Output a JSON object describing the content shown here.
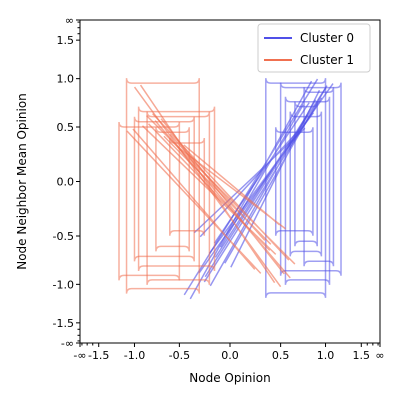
{
  "chart_data": {
    "type": "line",
    "xlabel": "Node Opinion",
    "ylabel": "Node Neighbor Mean Opinion",
    "scale": "arctanh-like (tick values map through tanh)",
    "x_ticks": [
      {
        "v": "-inf",
        "label": "-∞"
      },
      {
        "v": -1.5,
        "label": "-1.5"
      },
      {
        "v": -1.0,
        "label": "-1.0"
      },
      {
        "v": -0.5,
        "label": "-0.5"
      },
      {
        "v": 0.0,
        "label": "0.0"
      },
      {
        "v": 0.5,
        "label": "0.5"
      },
      {
        "v": 1.0,
        "label": "1.0"
      },
      {
        "v": 1.5,
        "label": "1.5"
      },
      {
        "v": "inf",
        "label": "∞"
      }
    ],
    "y_ticks": [
      {
        "v": "-inf",
        "label": "-∞"
      },
      {
        "v": -1.5,
        "label": "-1.5"
      },
      {
        "v": -1.0,
        "label": "-1.0"
      },
      {
        "v": -0.5,
        "label": "-0.5"
      },
      {
        "v": 0.0,
        "label": "0.0"
      },
      {
        "v": 0.5,
        "label": "0.5"
      },
      {
        "v": 1.0,
        "label": "1.0"
      },
      {
        "v": 1.5,
        "label": "1.5"
      },
      {
        "v": "inf",
        "label": "∞"
      }
    ],
    "legend_position": "top-right",
    "series": [
      {
        "name": "Cluster 0",
        "color": "#5050e8",
        "loops": [
          {
            "x": [
              0.35,
              1.0
            ],
            "y": [
              -1.1,
              0.95
            ]
          },
          {
            "x": [
              0.5,
              1.2
            ],
            "y": [
              -0.85,
              0.9
            ]
          },
          {
            "x": [
              0.55,
              1.05
            ],
            "y": [
              -0.95,
              0.75
            ]
          },
          {
            "x": [
              0.6,
              0.95
            ],
            "y": [
              -0.65,
              0.6
            ]
          },
          {
            "x": [
              0.75,
              1.1
            ],
            "y": [
              -0.75,
              0.85
            ]
          },
          {
            "x": [
              0.45,
              0.85
            ],
            "y": [
              -0.45,
              0.45
            ]
          },
          {
            "x": [
              0.65,
              0.9
            ],
            "y": [
              -0.55,
              0.7
            ]
          }
        ]
      },
      {
        "name": "Cluster 1",
        "color": "#f07050",
        "loops": [
          {
            "x": [
              -1.1,
              -0.3
            ],
            "y": [
              -1.05,
              0.95
            ]
          },
          {
            "x": [
              -0.85,
              -0.2
            ],
            "y": [
              -0.95,
              0.6
            ]
          },
          {
            "x": [
              -0.95,
              -0.15
            ],
            "y": [
              -0.8,
              0.65
            ]
          },
          {
            "x": [
              -0.75,
              -0.4
            ],
            "y": [
              -0.6,
              0.45
            ]
          },
          {
            "x": [
              -1.2,
              -0.5
            ],
            "y": [
              -0.9,
              0.5
            ]
          },
          {
            "x": [
              -0.6,
              -0.25
            ],
            "y": [
              -0.45,
              0.35
            ]
          },
          {
            "x": [
              -1.0,
              -0.35
            ],
            "y": [
              -0.7,
              0.55
            ]
          }
        ]
      }
    ]
  }
}
